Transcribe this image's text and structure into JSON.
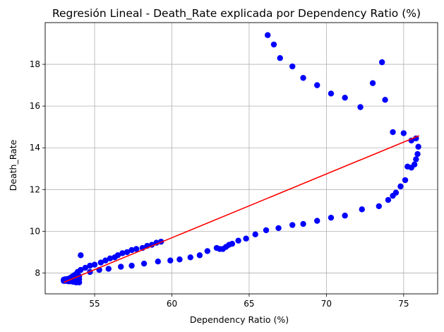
{
  "chart_data": {
    "type": "scatter",
    "title": "Regresión Lineal - Death_Rate explicada por Dependency Ratio (%)",
    "xlabel": "Dependency Ratio (%)",
    "ylabel": "Death_Rate",
    "xlim": [
      51.8,
      77.2
    ],
    "ylim": [
      7.0,
      20.0
    ],
    "xticks": [
      55,
      60,
      65,
      70,
      75
    ],
    "yticks": [
      8,
      10,
      12,
      14,
      16,
      18
    ],
    "grid": true,
    "colors": {
      "points": "#0000ff",
      "regression": "#ff0000",
      "grid": "#b0b0b0"
    },
    "series": [
      {
        "kind": "points",
        "points": [
          [
            66.2,
            19.4
          ],
          [
            66.6,
            18.95
          ],
          [
            67.0,
            18.3
          ],
          [
            67.8,
            17.9
          ],
          [
            68.5,
            17.35
          ],
          [
            69.4,
            17.0
          ],
          [
            70.3,
            16.6
          ],
          [
            71.2,
            16.4
          ],
          [
            72.2,
            15.95
          ],
          [
            73.0,
            17.1
          ],
          [
            73.6,
            18.1
          ],
          [
            73.8,
            16.3
          ],
          [
            74.3,
            14.75
          ],
          [
            75.0,
            14.7
          ],
          [
            75.5,
            14.35
          ],
          [
            75.8,
            14.45
          ],
          [
            75.95,
            14.05
          ],
          [
            75.9,
            13.7
          ],
          [
            75.8,
            13.45
          ],
          [
            75.7,
            13.2
          ],
          [
            75.5,
            13.05
          ],
          [
            75.25,
            13.1
          ],
          [
            75.1,
            12.45
          ],
          [
            74.8,
            12.15
          ],
          [
            74.5,
            11.85
          ],
          [
            74.3,
            11.7
          ],
          [
            74.0,
            11.5
          ],
          [
            73.4,
            11.2
          ],
          [
            72.3,
            11.05
          ],
          [
            71.2,
            10.75
          ],
          [
            70.3,
            10.65
          ],
          [
            69.4,
            10.5
          ],
          [
            68.5,
            10.35
          ],
          [
            67.8,
            10.3
          ],
          [
            66.9,
            10.15
          ],
          [
            66.1,
            10.05
          ],
          [
            65.4,
            9.85
          ],
          [
            64.8,
            9.65
          ],
          [
            64.3,
            9.55
          ],
          [
            63.9,
            9.4
          ],
          [
            63.7,
            9.35
          ],
          [
            63.5,
            9.25
          ],
          [
            63.3,
            9.15
          ],
          [
            63.1,
            9.15
          ],
          [
            62.9,
            9.2
          ],
          [
            62.3,
            9.05
          ],
          [
            61.8,
            8.85
          ],
          [
            61.2,
            8.75
          ],
          [
            60.5,
            8.65
          ],
          [
            59.9,
            8.6
          ],
          [
            59.1,
            8.55
          ],
          [
            58.2,
            8.45
          ],
          [
            57.4,
            8.35
          ],
          [
            56.7,
            8.3
          ],
          [
            55.9,
            8.2
          ],
          [
            55.3,
            8.15
          ],
          [
            54.7,
            8.05
          ],
          [
            54.1,
            8.85
          ],
          [
            59.3,
            9.5
          ],
          [
            59.0,
            9.45
          ],
          [
            58.7,
            9.35
          ],
          [
            58.4,
            9.3
          ],
          [
            58.1,
            9.2
          ],
          [
            57.7,
            9.15
          ],
          [
            57.4,
            9.1
          ],
          [
            57.1,
            9.0
          ],
          [
            56.8,
            8.95
          ],
          [
            56.5,
            8.85
          ],
          [
            56.3,
            8.75
          ],
          [
            56.0,
            8.7
          ],
          [
            55.7,
            8.6
          ],
          [
            55.4,
            8.5
          ],
          [
            55.0,
            8.4
          ],
          [
            54.7,
            8.35
          ],
          [
            54.4,
            8.25
          ],
          [
            54.1,
            8.15
          ],
          [
            53.9,
            8.05
          ],
          [
            53.8,
            7.95
          ],
          [
            53.7,
            7.9
          ],
          [
            53.6,
            7.85
          ],
          [
            53.5,
            7.8
          ],
          [
            53.4,
            7.75
          ],
          [
            53.3,
            7.72
          ],
          [
            53.2,
            7.7
          ],
          [
            53.1,
            7.7
          ],
          [
            53.0,
            7.68
          ],
          [
            53.0,
            7.62
          ],
          [
            53.2,
            7.65
          ],
          [
            53.4,
            7.6
          ],
          [
            53.6,
            7.58
          ],
          [
            53.8,
            7.55
          ],
          [
            54.0,
            7.55
          ],
          [
            54.0,
            7.7
          ],
          [
            54.0,
            7.85
          ],
          [
            53.9,
            7.9
          ],
          [
            53.8,
            7.7
          ],
          [
            53.5,
            7.68
          ],
          [
            53.3,
            7.6
          ],
          [
            53.1,
            7.62
          ]
        ]
      },
      {
        "kind": "line",
        "points": [
          [
            53.0,
            7.55
          ],
          [
            76.0,
            14.58
          ]
        ]
      }
    ]
  }
}
